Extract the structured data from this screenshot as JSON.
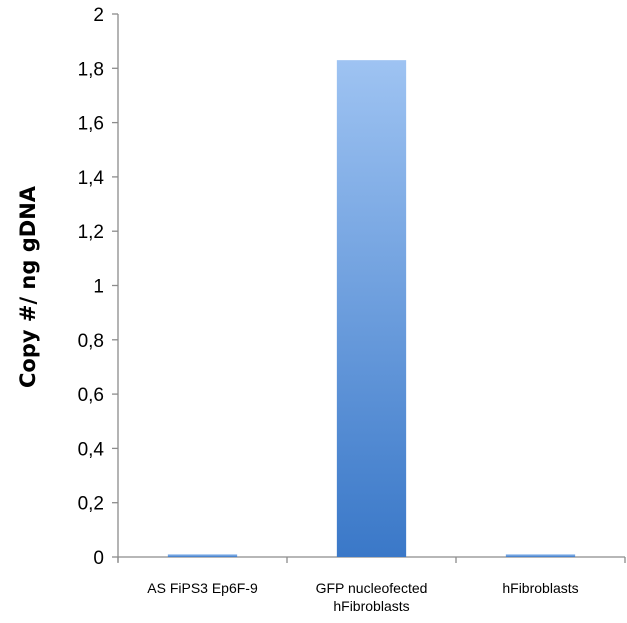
{
  "chart_data": {
    "type": "bar",
    "title": "",
    "xlabel": "",
    "ylabel": "Copy #/ ng gDNA",
    "ylim": [
      0,
      2
    ],
    "yticks": [
      "0",
      "0,2",
      "0,4",
      "0,6",
      "0,8",
      "1",
      "1,2",
      "1,4",
      "1,6",
      "1,8",
      "2"
    ],
    "categories": [
      [
        "AS FiPS3 Ep6F-9"
      ],
      [
        "GFP nucleofected",
        "hFibroblasts"
      ],
      [
        "hFibroblasts"
      ]
    ],
    "values": [
      0.01,
      1.83,
      0.01
    ],
    "grid": false,
    "colors": {
      "bar_top": "#9ec3f2",
      "bar_bottom": "#3a78c8",
      "axis": "#8c8c8c"
    }
  }
}
